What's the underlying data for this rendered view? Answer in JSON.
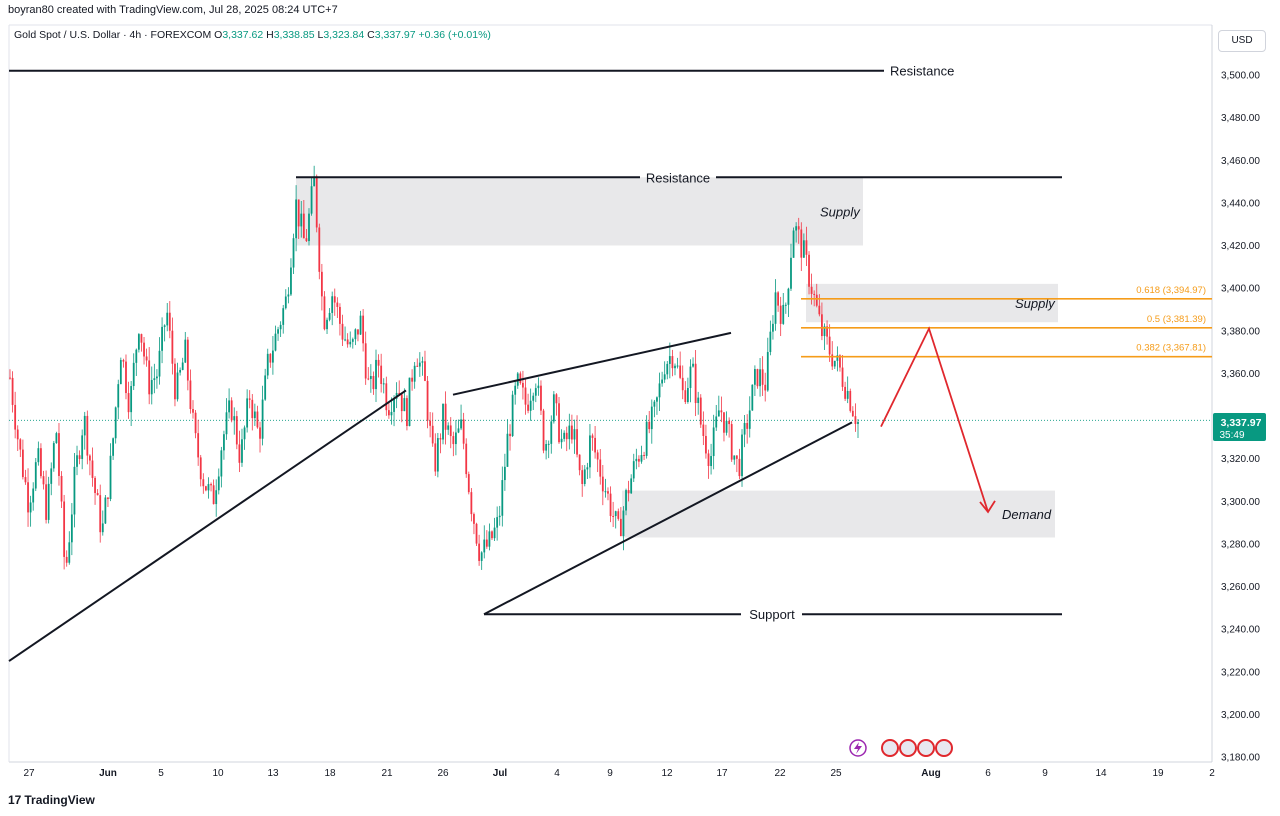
{
  "header": {
    "credit": "boyran80 created with TradingView.com, Jul 28, 2025 08:24 UTC+7"
  },
  "legend": {
    "symbol": "Gold Spot / U.S. Dollar · 4h · FOREXCOM",
    "open_k": "O",
    "open": "3,337.62",
    "high_k": "H",
    "high": "3,338.85",
    "low_k": "L",
    "low": "3,323.84",
    "close_k": "C",
    "close": "3,337.97",
    "change": "+0.36 (+0.01%)"
  },
  "currency_button": "USD",
  "price_badge": {
    "price": "3,337.97",
    "countdown": "35:49"
  },
  "brand": {
    "logo": "17",
    "name": "TradingView"
  },
  "colors": {
    "up": "#089981",
    "down": "#f23645",
    "fib": "#f59c1a",
    "zone": "#e8e8ea",
    "arrow": "#e0282e"
  },
  "chart_data": {
    "type": "candlestick",
    "title": "Gold Spot / U.S. Dollar · 4h · FOREXCOM",
    "ylabel": "USD",
    "ylim": [
      3175,
      3520
    ],
    "y_ticks": [
      3180,
      3200,
      3220,
      3240,
      3260,
      3280,
      3300,
      3320,
      3340,
      3360,
      3380,
      3400,
      3420,
      3440,
      3460,
      3480,
      3500
    ],
    "y_tick_labels": [
      "3,180.00",
      "3,200.00",
      "3,220.00",
      "3,240.00",
      "3,260.00",
      "3,280.00",
      "3,300.00",
      "3,320.00",
      "3,340.00",
      "3,360.00",
      "3,380.00",
      "3,400.00",
      "3,420.00",
      "3,440.00",
      "3,460.00",
      "3,480.00",
      "3,500.00"
    ],
    "x_tick_labels": [
      "27",
      "Jun",
      "5",
      "10",
      "13",
      "18",
      "21",
      "26",
      "Jul",
      "4",
      "9",
      "12",
      "17",
      "22",
      "25",
      "Aug",
      "6",
      "9",
      "14",
      "19",
      "2"
    ],
    "x_tick_bold": [
      "Jun",
      "Jul",
      "Aug"
    ],
    "last_price": 3337.97,
    "series_path_price": [
      3358,
      3325,
      3300,
      3320,
      3295,
      3335,
      3265,
      3310,
      3340,
      3310,
      3285,
      3320,
      3372,
      3345,
      3385,
      3355,
      3360,
      3390,
      3350,
      3370,
      3330,
      3310,
      3300,
      3328,
      3345,
      3320,
      3350,
      3330,
      3365,
      3380,
      3395,
      3440,
      3420,
      3450,
      3385,
      3398,
      3380,
      3370,
      3385,
      3350,
      3365,
      3345,
      3355,
      3340,
      3372,
      3355,
      3315,
      3340,
      3325,
      3335,
      3300,
      3275,
      3280,
      3290,
      3330,
      3355,
      3345,
      3360,
      3325,
      3345,
      3325,
      3335,
      3305,
      3330,
      3315,
      3300,
      3285,
      3305,
      3320,
      3330,
      3342,
      3365,
      3370,
      3350,
      3362,
      3335,
      3320,
      3345,
      3330,
      3315,
      3338,
      3360,
      3355,
      3398,
      3385,
      3430,
      3418,
      3400,
      3380,
      3370,
      3362,
      3350,
      3337
    ],
    "lines": [
      {
        "label": "Resistance",
        "y": 3502
      },
      {
        "label": "Resistance",
        "y": 3452
      },
      {
        "label": "Support",
        "y": 3247
      },
      {
        "label": "",
        "kind": "trendline-lower",
        "from": [
          3225
        ],
        "to": [
          3352
        ]
      },
      {
        "label": "",
        "kind": "channel-lower",
        "from": [
          3247
        ],
        "to": [
          3337
        ]
      },
      {
        "label": "",
        "kind": "channel-upper",
        "from": [
          3350
        ],
        "to": [
          3379
        ]
      }
    ],
    "zones": [
      {
        "label": "Supply",
        "top": 3452,
        "bottom": 3420
      },
      {
        "label": "Supply",
        "top": 3402,
        "bottom": 3384
      },
      {
        "label": "Demand",
        "top": 3305,
        "bottom": 3283
      }
    ],
    "fibonacci": [
      {
        "label": "0.618 (3,394.97)",
        "level": 0.618,
        "value": 3394.97
      },
      {
        "label": "0.5 (3,381.39)",
        "level": 0.5,
        "value": 3381.39
      },
      {
        "label": "0.382 (3,367.81)",
        "level": 0.382,
        "value": 3367.81
      }
    ],
    "projection": {
      "from": 3335,
      "peak": 3381,
      "target": 3295
    }
  }
}
